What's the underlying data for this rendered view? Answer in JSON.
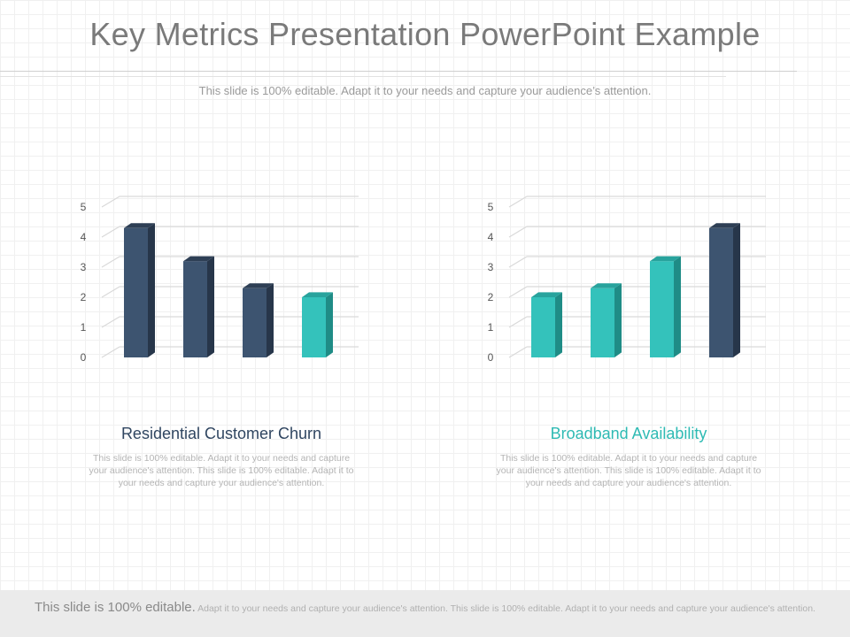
{
  "slide": {
    "title": "Key Metrics Presentation PowerPoint Example",
    "subtitle": "This slide is 100% editable. Adapt it to your needs and capture your audience’s attention."
  },
  "colors": {
    "navy": "#3d5470",
    "navy_side": "#27364a",
    "navy_top": "#2e3f55",
    "teal": "#34c2bb",
    "teal_side": "#1f8c86",
    "teal_top": "#28a39d",
    "left_title": "#2f4560",
    "right_title": "#2ebab3"
  },
  "cards": [
    {
      "title": "Residential Customer Churn",
      "body": "This slide is 100% editable. Adapt it to your needs and capture your audience's attention. This slide is 100% editable. Adapt it to your needs and capture your audience's attention."
    },
    {
      "title": "Broadband Availability",
      "body": "This slide is 100% editable. Adapt it to your needs and capture your audience's attention. This slide is 100% editable. Adapt it to your needs and capture your audience's attention."
    }
  ],
  "footer": {
    "lead": "This slide is 100% editable.",
    "rest": " Adapt it to your needs and capture your audience's attention. This slide is 100% editable. Adapt it to your needs and capture your audience's attention."
  },
  "chart_data": [
    {
      "type": "bar",
      "title": "",
      "xlabel": "",
      "ylabel": "",
      "y_ticks": [
        "0",
        "1",
        "2",
        "3",
        "4",
        "5"
      ],
      "ylim": [
        0,
        5
      ],
      "grid": true,
      "values": [
        4.3,
        3.2,
        2.3,
        2.0
      ],
      "bar_colors": [
        "navy",
        "navy",
        "navy",
        "teal"
      ]
    },
    {
      "type": "bar",
      "title": "",
      "xlabel": "",
      "ylabel": "",
      "y_ticks": [
        "0",
        "1",
        "2",
        "3",
        "4",
        "5"
      ],
      "ylim": [
        0,
        5
      ],
      "grid": true,
      "values": [
        2.0,
        2.3,
        3.2,
        4.3
      ],
      "bar_colors": [
        "teal",
        "teal",
        "teal",
        "navy"
      ]
    }
  ]
}
